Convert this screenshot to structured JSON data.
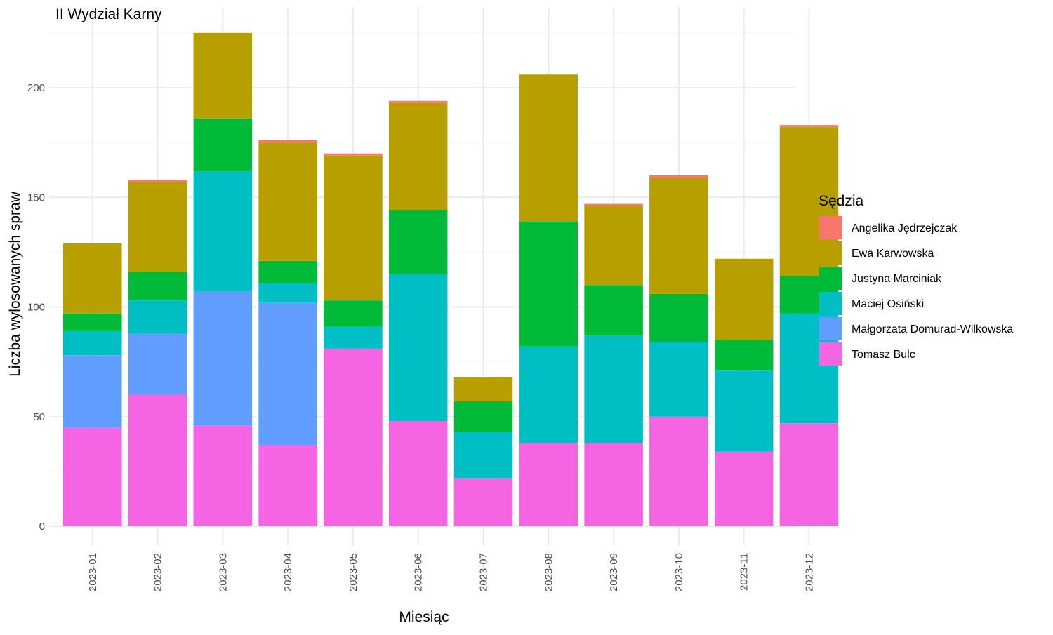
{
  "chart_data": {
    "type": "bar",
    "stacked": true,
    "title": "II Wydział Karny",
    "xlabel": "Miesiąc",
    "ylabel": "Liczba wylosowanych spraw",
    "ylim": [
      0,
      228
    ],
    "yticks": [
      0,
      50,
      100,
      150,
      200
    ],
    "grid": true,
    "legend_title": "Sędzia",
    "legend_position": "right",
    "categories": [
      "2023-01",
      "2023-02",
      "2023-03",
      "2023-04",
      "2023-05",
      "2023-06",
      "2023-07",
      "2023-08",
      "2023-09",
      "2023-10",
      "2023-11",
      "2023-12"
    ],
    "series": [
      {
        "name": "Tomasz Bulc",
        "color": "#F564E3",
        "values": [
          45,
          60,
          46,
          37,
          81,
          48,
          22,
          38,
          38,
          50,
          34,
          47
        ]
      },
      {
        "name": "Małgorzata Domurad-Wilkowska",
        "color": "#619CFF",
        "values": [
          33,
          28,
          61,
          65,
          0,
          0,
          0,
          0,
          0,
          0,
          0,
          0
        ]
      },
      {
        "name": "Maciej Osiński",
        "color": "#00BFC4",
        "values": [
          11,
          15,
          55,
          9,
          10,
          67,
          21,
          44,
          49,
          34,
          37,
          50
        ]
      },
      {
        "name": "Justyna Marciniak",
        "color": "#00BA38",
        "values": [
          8,
          13,
          24,
          10,
          12,
          29,
          14,
          57,
          23,
          22,
          14,
          17
        ]
      },
      {
        "name": "Ewa Karwowska",
        "color": "#B79F00",
        "values": [
          32,
          41,
          39,
          54,
          66,
          49,
          11,
          67,
          36,
          53,
          37,
          68
        ]
      },
      {
        "name": "Angelika Jędrzejczak",
        "color": "#F8766D",
        "values": [
          0,
          1,
          0,
          1,
          1,
          1,
          0,
          0,
          1,
          1,
          0,
          1
        ]
      }
    ],
    "legend_order": [
      "Angelika Jędrzejczak",
      "Ewa Karwowska",
      "Justyna Marciniak",
      "Maciej Osiński",
      "Małgorzata Domurad-Wilkowska",
      "Tomasz Bulc"
    ]
  }
}
